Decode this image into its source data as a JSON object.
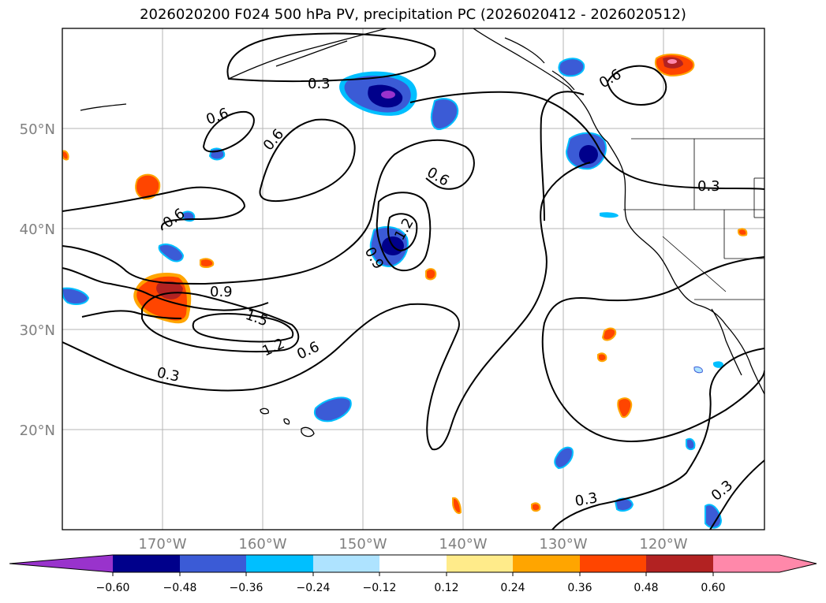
{
  "title": "2026020200 F024 500 hPa PV, precipitation PC (2026020412 - 2026020512)",
  "map": {
    "lat_labels": [
      "50°N",
      "40°N",
      "30°N",
      "20°N"
    ],
    "lon_labels": [
      "170°W",
      "160°W",
      "150°W",
      "140°W",
      "130°W",
      "120°W"
    ],
    "contour_labels": [
      "0.3",
      "0.6",
      "0.6",
      "0.6",
      "0.6",
      "0.6",
      "0.3",
      "0.9",
      "1.5",
      "1.2",
      "0.6",
      "0.3",
      "1.2",
      "0.9",
      "0.3",
      "0.3"
    ],
    "colors": {
      "neg_060": "#9933cc",
      "neg_048": "#00008b",
      "neg_036": "#3b5bd6",
      "neg_024": "#00bfff",
      "neg_012": "#aee3ff",
      "pos_012": "#ffeb8a",
      "pos_024": "#ffa500",
      "pos_036": "#ff4500",
      "pos_048": "#b22222",
      "pos_060": "#ff88aa"
    }
  },
  "colorbar": {
    "ticks": [
      "−0.60",
      "−0.48",
      "−0.36",
      "−0.24",
      "−0.12",
      "0.12",
      "0.24",
      "0.36",
      "0.48",
      "0.60"
    ],
    "colors": [
      "#9933cc",
      "#00008b",
      "#3b5bd6",
      "#00bfff",
      "#aee3ff",
      "#ffffff",
      "#ffeb8a",
      "#ffa500",
      "#ff4500",
      "#b22222",
      "#ff88aa"
    ]
  }
}
